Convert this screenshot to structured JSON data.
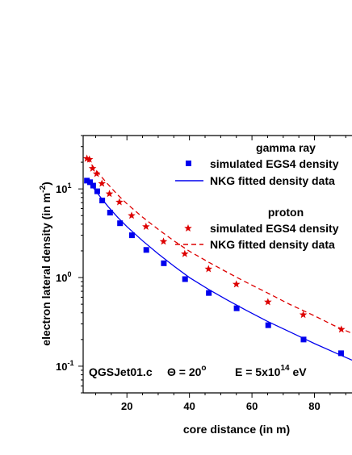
{
  "chart_data": {
    "type": "scatter",
    "xlabel": "core distance (in m)",
    "ylabel_parts": {
      "main": "electron lateral density (in m",
      "sup": "-2",
      "end": ")"
    },
    "xlim": [
      6,
      92
    ],
    "ylim": [
      0.05,
      40
    ],
    "yscale": "log",
    "x_ticks": [
      20,
      40,
      60,
      80
    ],
    "y_ticks": [
      {
        "value": 0.1,
        "base": "10",
        "exp": "-1"
      },
      {
        "value": 1,
        "base": "10",
        "exp": "0"
      },
      {
        "value": 10,
        "base": "10",
        "exp": "1"
      }
    ],
    "annotation": {
      "model": "QGSJet01.c",
      "theta_symbol": "Θ",
      "theta_eq": " = 20",
      "theta_deg": "o",
      "energy_prefix": "E = 5x10",
      "energy_exp": "14",
      "energy_unit": " eV"
    },
    "legend_groups": [
      {
        "title": "gamma ray",
        "entries": [
          "simulated EGS4 density",
          "NKG fitted density data"
        ]
      },
      {
        "title": "proton",
        "entries": [
          "simulated EGS4 density",
          "NKG fitted density data"
        ]
      }
    ],
    "series": [
      {
        "name": "simulated EGS4 density",
        "group": "gamma ray",
        "kind": "points",
        "marker": "square",
        "color": "#0000ee",
        "x": [
          7.2,
          8.2,
          9.2,
          10.5,
          12.1,
          14.6,
          17.8,
          21.6,
          26.2,
          31.8,
          38.6,
          46.2,
          55.1,
          65.2,
          76.5,
          88.5
        ],
        "y": [
          12.4,
          11.9,
          10.9,
          9.4,
          7.4,
          5.4,
          4.1,
          3.0,
          2.05,
          1.45,
          0.96,
          0.67,
          0.45,
          0.29,
          0.2,
          0.14
        ]
      },
      {
        "name": "NKG fitted density data",
        "group": "gamma ray",
        "kind": "line",
        "dash": "solid",
        "color": "#0000ee",
        "x": [
          7,
          8,
          9,
          10,
          12,
          14,
          17,
          20,
          25,
          30,
          35,
          40,
          46,
          52,
          58,
          65,
          72,
          80,
          86,
          92
        ],
        "y": [
          12.2,
          11.5,
          10.6,
          9.5,
          7.7,
          6.3,
          4.8,
          3.75,
          2.6,
          1.85,
          1.35,
          1.0,
          0.74,
          0.56,
          0.43,
          0.32,
          0.245,
          0.18,
          0.145,
          0.117
        ]
      },
      {
        "name": "simulated EGS4 density",
        "group": "proton",
        "kind": "points",
        "marker": "star",
        "color": "#dd0000",
        "x": [
          7.2,
          8.0,
          9.0,
          10.3,
          12.0,
          14.4,
          17.6,
          21.5,
          26.1,
          31.7,
          38.5,
          46.1,
          55.0,
          65.1,
          76.4,
          88.6
        ],
        "y": [
          22.0,
          21.5,
          17.0,
          14.8,
          11.5,
          8.8,
          7.1,
          5.0,
          3.75,
          2.55,
          1.85,
          1.25,
          0.84,
          0.53,
          0.38,
          0.26
        ]
      },
      {
        "name": "NKG fitted density data",
        "group": "proton",
        "kind": "line",
        "dash": "dashed",
        "color": "#dd0000",
        "x": [
          7,
          8,
          9,
          10,
          12,
          14,
          17,
          20,
          25,
          30,
          35,
          40,
          46,
          52,
          58,
          65,
          72,
          80,
          86,
          92
        ],
        "y": [
          22.0,
          20.0,
          18.2,
          16.5,
          13.5,
          11.2,
          8.6,
          6.8,
          4.8,
          3.5,
          2.6,
          1.98,
          1.5,
          1.15,
          0.89,
          0.67,
          0.5,
          0.37,
          0.29,
          0.235
        ]
      }
    ]
  }
}
